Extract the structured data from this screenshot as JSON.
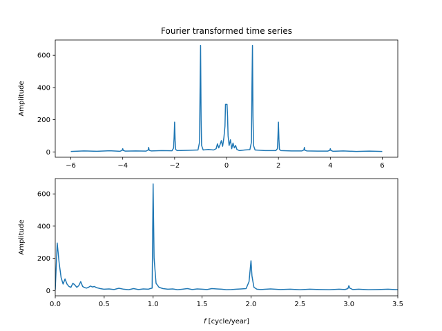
{
  "colors": {
    "series": "#1f77b4",
    "axes": "#000000",
    "background": "#ffffff"
  },
  "chart_data": [
    {
      "type": "line",
      "title": "Fourier transformed time series",
      "xlabel": "",
      "ylabel": "Amplitude",
      "xlim": [
        -6.6,
        6.6
      ],
      "ylim": [
        -33,
        695
      ],
      "grid": false,
      "xticks": [
        -6,
        -4,
        -2,
        0,
        2,
        4,
        6
      ],
      "xtick_labels": [
        "−6",
        "−4",
        "−2",
        "0",
        "2",
        "4",
        "6"
      ],
      "yticks": [
        0,
        200,
        400,
        600
      ],
      "ytick_labels": [
        "0",
        "200",
        "400",
        "600"
      ],
      "series": [
        {
          "x": [
            -6,
            -5.5,
            -5,
            -4.5,
            -4.1,
            -4.02,
            -4,
            -3.98,
            -3.9,
            -3.5,
            -3.1,
            -3.02,
            -3,
            -2.98,
            -2.9,
            -2.5,
            -2.1,
            -2.04,
            -2.02,
            -2,
            -1.98,
            -1.96,
            -1.9,
            -1.5,
            -1.1,
            -1.04,
            -1.02,
            -1,
            -0.98,
            -0.96,
            -0.9,
            -0.7,
            -0.5,
            -0.4,
            -0.35,
            -0.3,
            -0.25,
            -0.2,
            -0.15,
            -0.1,
            -0.06,
            -0.04,
            -0.02,
            0,
            0.02,
            0.04,
            0.06,
            0.1,
            0.15,
            0.2,
            0.25,
            0.3,
            0.35,
            0.4,
            0.5,
            0.7,
            0.9,
            0.96,
            0.98,
            1,
            1.02,
            1.04,
            1.1,
            1.5,
            1.9,
            1.96,
            1.98,
            2,
            2.02,
            2.04,
            2.1,
            2.5,
            2.9,
            2.98,
            3,
            3.02,
            3.1,
            3.5,
            3.9,
            3.98,
            4,
            4.02,
            4.1,
            4.5,
            5,
            5.5,
            6
          ],
          "y": [
            3,
            6,
            4,
            7,
            4,
            10,
            20,
            9,
            5,
            6,
            5,
            12,
            28,
            10,
            6,
            8,
            7,
            25,
            90,
            185,
            70,
            15,
            8,
            10,
            12,
            60,
            380,
            662,
            200,
            40,
            12,
            15,
            12,
            20,
            50,
            25,
            45,
            70,
            35,
            90,
            160,
            295,
            295,
            295,
            295,
            220,
            100,
            40,
            75,
            20,
            55,
            25,
            40,
            15,
            8,
            12,
            14,
            60,
            400,
            662,
            220,
            40,
            12,
            8,
            8,
            20,
            90,
            185,
            75,
            15,
            8,
            6,
            6,
            12,
            28,
            10,
            6,
            5,
            5,
            10,
            20,
            9,
            4,
            6,
            3,
            5,
            3
          ]
        }
      ]
    },
    {
      "type": "line",
      "title": "",
      "xlabel": "f [cycle/year]",
      "ylabel": "Amplitude",
      "xlim": [
        0,
        3.5
      ],
      "ylim": [
        -33,
        695
      ],
      "grid": false,
      "xticks": [
        0,
        0.5,
        1,
        1.5,
        2,
        2.5,
        3,
        3.5
      ],
      "xtick_labels": [
        "0.0",
        "0.5",
        "1.0",
        "1.5",
        "2.0",
        "2.5",
        "3.0",
        "3.5"
      ],
      "yticks": [
        0,
        200,
        400,
        600
      ],
      "ytick_labels": [
        "0",
        "200",
        "400",
        "600"
      ],
      "series": [
        {
          "x": [
            0,
            0.02,
            0.04,
            0.06,
            0.08,
            0.1,
            0.12,
            0.14,
            0.16,
            0.18,
            0.2,
            0.22,
            0.24,
            0.26,
            0.28,
            0.3,
            0.32,
            0.34,
            0.36,
            0.38,
            0.4,
            0.42,
            0.44,
            0.46,
            0.48,
            0.5,
            0.55,
            0.6,
            0.65,
            0.7,
            0.75,
            0.8,
            0.85,
            0.9,
            0.95,
            0.97,
            0.99,
            1,
            1.01,
            1.03,
            1.06,
            1.1,
            1.15,
            1.2,
            1.25,
            1.3,
            1.35,
            1.4,
            1.45,
            1.5,
            1.55,
            1.6,
            1.65,
            1.7,
            1.75,
            1.8,
            1.85,
            1.9,
            1.95,
            1.98,
            1.99,
            2,
            2.01,
            2.03,
            2.06,
            2.1,
            2.2,
            2.3,
            2.4,
            2.5,
            2.6,
            2.7,
            2.8,
            2.9,
            2.96,
            2.99,
            3,
            3.01,
            3.04,
            3.1,
            3.2,
            3.3,
            3.4,
            3.5
          ],
          "y": [
            5,
            295,
            170,
            80,
            40,
            72,
            40,
            25,
            20,
            45,
            35,
            20,
            30,
            55,
            25,
            18,
            15,
            20,
            28,
            22,
            25,
            18,
            15,
            12,
            10,
            8,
            10,
            6,
            14,
            8,
            5,
            12,
            6,
            10,
            8,
            12,
            15,
            662,
            200,
            45,
            20,
            12,
            8,
            10,
            5,
            8,
            12,
            6,
            10,
            8,
            6,
            12,
            10,
            8,
            5,
            6,
            8,
            10,
            12,
            55,
            120,
            185,
            90,
            20,
            8,
            6,
            10,
            6,
            8,
            5,
            8,
            6,
            5,
            8,
            6,
            12,
            30,
            15,
            6,
            8,
            5,
            6,
            8,
            5
          ]
        }
      ]
    }
  ]
}
